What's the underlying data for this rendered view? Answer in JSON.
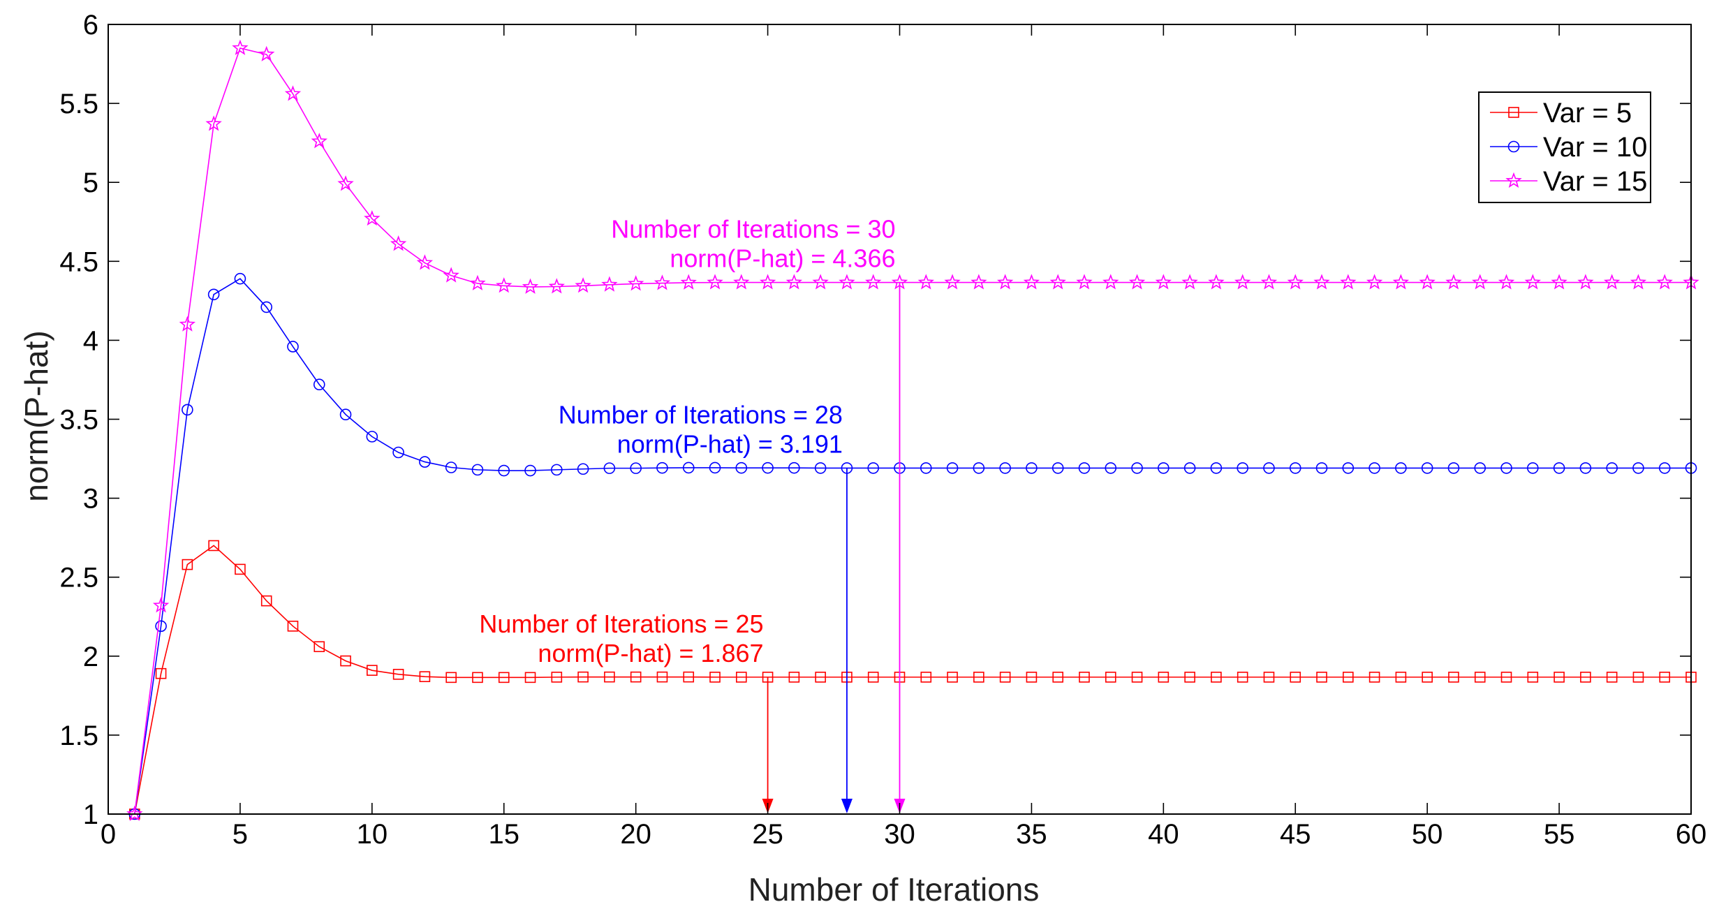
{
  "chart_data": {
    "type": "line",
    "title": "",
    "xlabel": "Number of Iterations",
    "ylabel": "norm(P-hat)",
    "xlim": [
      0,
      60
    ],
    "ylim": [
      1,
      6
    ],
    "xticks": [
      0,
      5,
      10,
      15,
      20,
      25,
      30,
      35,
      40,
      45,
      50,
      55,
      60
    ],
    "yticks": [
      1,
      1.5,
      2,
      2.5,
      3,
      3.5,
      4,
      4.5,
      5,
      5.5,
      6
    ],
    "xtick_labels": [
      "0",
      "5",
      "10",
      "15",
      "20",
      "25",
      "30",
      "35",
      "40",
      "45",
      "50",
      "55",
      "60"
    ],
    "ytick_labels": [
      "1",
      "1.5",
      "2",
      "2.5",
      "3",
      "3.5",
      "4",
      "4.5",
      "5",
      "5.5",
      "6"
    ],
    "grid": false,
    "legend_position": "top-right",
    "series": [
      {
        "name": "Var = 5",
        "color": "#ff0000",
        "marker": "square",
        "x": [
          1,
          2,
          3,
          4,
          5,
          6,
          7,
          8,
          9,
          10,
          11,
          12,
          13,
          14,
          15,
          16,
          17,
          18,
          19,
          20,
          21,
          22,
          23,
          24,
          25,
          26,
          27,
          28,
          29,
          30,
          31,
          32,
          33,
          34,
          35,
          36,
          37,
          38,
          39,
          40,
          41,
          42,
          43,
          44,
          45,
          46,
          47,
          48,
          49,
          50,
          51,
          52,
          53,
          54,
          55,
          56,
          57,
          58,
          59,
          60
        ],
        "y": [
          1.0,
          1.89,
          2.58,
          2.7,
          2.55,
          2.35,
          2.19,
          2.06,
          1.97,
          1.91,
          1.885,
          1.87,
          1.865,
          1.865,
          1.865,
          1.865,
          1.867,
          1.868,
          1.868,
          1.868,
          1.868,
          1.868,
          1.867,
          1.867,
          1.867,
          1.867,
          1.867,
          1.867,
          1.867,
          1.867,
          1.867,
          1.867,
          1.867,
          1.867,
          1.867,
          1.867,
          1.867,
          1.867,
          1.867,
          1.867,
          1.867,
          1.867,
          1.867,
          1.867,
          1.867,
          1.867,
          1.867,
          1.867,
          1.867,
          1.867,
          1.867,
          1.867,
          1.867,
          1.867,
          1.867,
          1.867,
          1.867,
          1.867,
          1.867,
          1.867
        ]
      },
      {
        "name": "Var = 10",
        "color": "#0000ff",
        "marker": "circle",
        "x": [
          1,
          2,
          3,
          4,
          5,
          6,
          7,
          8,
          9,
          10,
          11,
          12,
          13,
          14,
          15,
          16,
          17,
          18,
          19,
          20,
          21,
          22,
          23,
          24,
          25,
          26,
          27,
          28,
          29,
          30,
          31,
          32,
          33,
          34,
          35,
          36,
          37,
          38,
          39,
          40,
          41,
          42,
          43,
          44,
          45,
          46,
          47,
          48,
          49,
          50,
          51,
          52,
          53,
          54,
          55,
          56,
          57,
          58,
          59,
          60
        ],
        "y": [
          1.0,
          2.19,
          3.56,
          4.29,
          4.39,
          4.21,
          3.96,
          3.72,
          3.53,
          3.39,
          3.29,
          3.23,
          3.195,
          3.18,
          3.175,
          3.175,
          3.18,
          3.185,
          3.19,
          3.19,
          3.192,
          3.193,
          3.193,
          3.192,
          3.192,
          3.192,
          3.191,
          3.191,
          3.191,
          3.191,
          3.191,
          3.191,
          3.191,
          3.191,
          3.191,
          3.191,
          3.191,
          3.191,
          3.191,
          3.191,
          3.191,
          3.191,
          3.191,
          3.191,
          3.191,
          3.191,
          3.191,
          3.191,
          3.191,
          3.191,
          3.191,
          3.191,
          3.191,
          3.191,
          3.191,
          3.191,
          3.191,
          3.191,
          3.191,
          3.191
        ]
      },
      {
        "name": "Var = 15",
        "color": "#ff00ff",
        "marker": "star",
        "x": [
          1,
          2,
          3,
          4,
          5,
          6,
          7,
          8,
          9,
          10,
          11,
          12,
          13,
          14,
          15,
          16,
          17,
          18,
          19,
          20,
          21,
          22,
          23,
          24,
          25,
          26,
          27,
          28,
          29,
          30,
          31,
          32,
          33,
          34,
          35,
          36,
          37,
          38,
          39,
          40,
          41,
          42,
          43,
          44,
          45,
          46,
          47,
          48,
          49,
          50,
          51,
          52,
          53,
          54,
          55,
          56,
          57,
          58,
          59,
          60
        ],
        "y": [
          1.0,
          2.32,
          4.1,
          5.37,
          5.85,
          5.81,
          5.56,
          5.26,
          4.99,
          4.77,
          4.61,
          4.49,
          4.41,
          4.36,
          4.345,
          4.338,
          4.34,
          4.345,
          4.352,
          4.358,
          4.362,
          4.365,
          4.366,
          4.366,
          4.366,
          4.366,
          4.366,
          4.366,
          4.366,
          4.366,
          4.366,
          4.366,
          4.366,
          4.366,
          4.366,
          4.366,
          4.366,
          4.366,
          4.366,
          4.366,
          4.366,
          4.366,
          4.366,
          4.366,
          4.366,
          4.366,
          4.366,
          4.366,
          4.366,
          4.366,
          4.366,
          4.366,
          4.366,
          4.366,
          4.366,
          4.366,
          4.366,
          4.366,
          4.366,
          4.366
        ]
      }
    ],
    "annotations": [
      {
        "color": "#ff0000",
        "line1": "Number of Iterations = 25",
        "line2": "norm(P-hat) = 1.867",
        "arrow_x": 25,
        "arrow_y": 1.867
      },
      {
        "color": "#0000ff",
        "line1": "Number of Iterations = 28",
        "line2": "norm(P-hat) = 3.191",
        "arrow_x": 28,
        "arrow_y": 3.191
      },
      {
        "color": "#ff00ff",
        "line1": "Number of Iterations = 30",
        "line2": "norm(P-hat) = 4.366",
        "arrow_x": 30,
        "arrow_y": 4.366
      }
    ]
  }
}
